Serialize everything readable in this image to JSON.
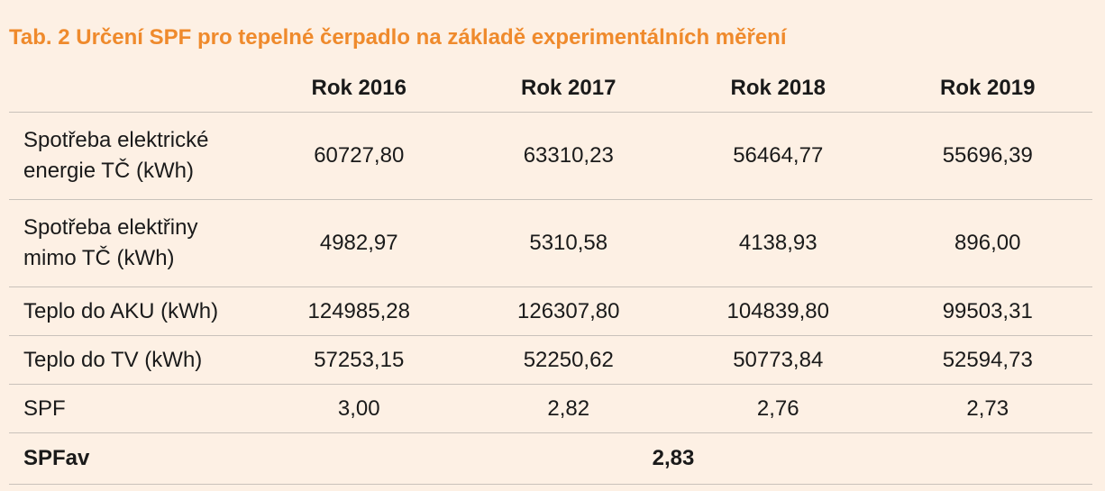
{
  "title": "Tab. 2 Určení SPF pro tepelné čerpadlo na základě experimentálních měření",
  "table": {
    "headers": [
      "",
      "Rok 2016",
      "Rok 2017",
      "Rok 2018",
      "Rok 2019"
    ],
    "rows": [
      {
        "label": "Spotřeba elektrické energie TČ (kWh)",
        "values": [
          "60727,80",
          "63310,23",
          "56464,77",
          "55696,39"
        ]
      },
      {
        "label": "Spotřeba elektřiny mimo TČ (kWh)",
        "values": [
          "4982,97",
          "5310,58",
          "4138,93",
          "896,00"
        ]
      },
      {
        "label": "Teplo do AKU (kWh)",
        "values": [
          "124985,28",
          "126307,80",
          "104839,80",
          "99503,31"
        ]
      },
      {
        "label": "Teplo do TV (kWh)",
        "values": [
          "57253,15",
          "52250,62",
          "50773,84",
          "52594,73"
        ]
      },
      {
        "label": "SPF",
        "values": [
          "3,00",
          "2,82",
          "2,76",
          "2,73"
        ]
      }
    ],
    "summary": {
      "label": "SPFav",
      "value": "2,83"
    }
  },
  "colors": {
    "title": "#ef8a2c",
    "background": "#fdf0e4",
    "rule": "#c9c2bb"
  }
}
